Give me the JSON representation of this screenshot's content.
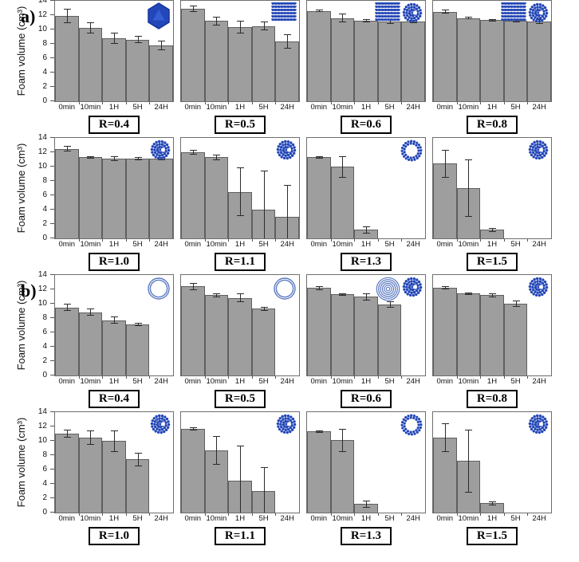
{
  "figure": {
    "panel_a_label": "a)",
    "panel_b_label": "b)",
    "y_axis_label": "Foam volume (cm³)",
    "x_categories": [
      "0min",
      "10min",
      "1H",
      "5H",
      "24H"
    ],
    "y_ticks": [
      0,
      2,
      4,
      6,
      8,
      10,
      12,
      14
    ],
    "y_max": 14,
    "grid": false,
    "legend": "none"
  },
  "colors": {
    "bar_fill": "#9e9e9e",
    "bar_border": "#5f5f5f",
    "error_bar": "#2b2b2b",
    "plot_border": "#6e6e6e",
    "icon_blue": "#2347b8",
    "icon_dark_blue": "#16339a",
    "ring_blue": "#5b79c0",
    "label_box_border": "#000000"
  },
  "chart_data": [
    {
      "panel": "a",
      "row": 0,
      "type": "bar",
      "title": "R=0.4",
      "categories": [
        "0min",
        "10min",
        "1H",
        "5H",
        "24H"
      ],
      "values": [
        11.9,
        10.2,
        8.8,
        8.6,
        7.8
      ],
      "errors": [
        1.0,
        0.8,
        0.8,
        0.5,
        0.7
      ],
      "icons": [
        "cubosome"
      ],
      "ylim": [
        0,
        14
      ]
    },
    {
      "panel": "a",
      "row": 0,
      "type": "bar",
      "title": "R=0.5",
      "categories": [
        "0min",
        "10min",
        "1H",
        "5H",
        "24H"
      ],
      "values": [
        12.9,
        11.2,
        10.3,
        10.5,
        8.3
      ],
      "errors": [
        0.4,
        0.6,
        0.9,
        0.6,
        1.0
      ],
      "icons": [
        "lamellar"
      ],
      "ylim": [
        0,
        14
      ]
    },
    {
      "panel": "a",
      "row": 0,
      "type": "bar",
      "title": "R=0.6",
      "categories": [
        "0min",
        "10min",
        "1H",
        "5H",
        "24H"
      ],
      "values": [
        12.6,
        11.6,
        11.2,
        11.1,
        11.1
      ],
      "errors": [
        0.2,
        0.6,
        0.2,
        0.3,
        0.2
      ],
      "icons": [
        "lamellar",
        "micelle"
      ],
      "ylim": [
        0,
        14
      ]
    },
    {
      "panel": "a",
      "row": 0,
      "type": "bar",
      "title": "R=0.8",
      "categories": [
        "0min",
        "10min",
        "1H",
        "5H",
        "24H"
      ],
      "values": [
        12.5,
        11.6,
        11.3,
        11.2,
        11.1
      ],
      "errors": [
        0.3,
        0.2,
        0.2,
        0.2,
        0.3
      ],
      "icons": [
        "lamellar",
        "micelle"
      ],
      "ylim": [
        0,
        14
      ]
    },
    {
      "panel": "a",
      "row": 1,
      "type": "bar",
      "title": "R=1.0",
      "categories": [
        "0min",
        "10min",
        "1H",
        "5H",
        "24H"
      ],
      "values": [
        12.5,
        11.3,
        11.1,
        11.1,
        11.1
      ],
      "errors": [
        0.4,
        0.2,
        0.3,
        0.2,
        0.2
      ],
      "icons": [
        "micelle"
      ],
      "ylim": [
        0,
        14
      ]
    },
    {
      "panel": "a",
      "row": 1,
      "type": "bar",
      "title": "R=1.1",
      "categories": [
        "0min",
        "10min",
        "1H",
        "5H",
        "24H"
      ],
      "values": [
        12.0,
        11.3,
        6.5,
        4.0,
        3.0
      ],
      "errors": [
        0.3,
        0.4,
        3.4,
        5.5,
        4.5
      ],
      "icons": [
        "micelle"
      ],
      "ylim": [
        0,
        14
      ]
    },
    {
      "panel": "a",
      "row": 1,
      "type": "bar",
      "title": "R=1.3",
      "categories": [
        "0min",
        "10min",
        "1H",
        "5H",
        "24H"
      ],
      "values": [
        11.3,
        10.0,
        1.2,
        0,
        0
      ],
      "errors": [
        0.2,
        1.5,
        0.5,
        0,
        0
      ],
      "icons": [
        "dotted-ring"
      ],
      "ylim": [
        0,
        14
      ]
    },
    {
      "panel": "a",
      "row": 1,
      "type": "bar",
      "title": "R=1.5",
      "categories": [
        "0min",
        "10min",
        "1H",
        "5H",
        "24H"
      ],
      "values": [
        10.4,
        7.0,
        1.2,
        0,
        0
      ],
      "errors": [
        1.9,
        4.0,
        0.3,
        0,
        0
      ],
      "icons": [
        "micelle"
      ],
      "ylim": [
        0,
        14
      ]
    },
    {
      "panel": "b",
      "row": 2,
      "type": "bar",
      "title": "R=0.4",
      "categories": [
        "0min",
        "10min",
        "1H",
        "5H",
        "24H"
      ],
      "values": [
        9.5,
        8.8,
        7.7,
        7.1,
        0
      ],
      "errors": [
        0.5,
        0.5,
        0.5,
        0.2,
        0
      ],
      "icons": [
        "vesicle-ring"
      ],
      "ylim": [
        0,
        14
      ]
    },
    {
      "panel": "b",
      "row": 2,
      "type": "bar",
      "title": "R=0.5",
      "categories": [
        "0min",
        "10min",
        "1H",
        "5H",
        "24H"
      ],
      "values": [
        12.4,
        11.2,
        10.8,
        9.3,
        0
      ],
      "errors": [
        0.5,
        0.3,
        0.6,
        0.3,
        0
      ],
      "icons": [
        "vesicle-ring"
      ],
      "ylim": [
        0,
        14
      ]
    },
    {
      "panel": "b",
      "row": 2,
      "type": "bar",
      "title": "R=0.6",
      "categories": [
        "0min",
        "10min",
        "1H",
        "5H",
        "24H"
      ],
      "values": [
        12.2,
        11.3,
        11.0,
        9.9,
        0
      ],
      "errors": [
        0.3,
        0.2,
        0.5,
        0.4,
        0
      ],
      "icons": [
        "onion",
        "micelle"
      ],
      "ylim": [
        0,
        14
      ]
    },
    {
      "panel": "b",
      "row": 2,
      "type": "bar",
      "title": "R=0.8",
      "categories": [
        "0min",
        "10min",
        "1H",
        "5H",
        "24H"
      ],
      "values": [
        12.2,
        11.4,
        11.2,
        10.0,
        0
      ],
      "errors": [
        0.2,
        0.2,
        0.3,
        0.4,
        0
      ],
      "icons": [
        "micelle"
      ],
      "ylim": [
        0,
        14
      ]
    },
    {
      "panel": "b",
      "row": 3,
      "type": "bar",
      "title": "R=1.0",
      "categories": [
        "0min",
        "10min",
        "1H",
        "5H",
        "24H"
      ],
      "values": [
        11.0,
        10.5,
        10.0,
        7.4,
        0
      ],
      "errors": [
        0.6,
        1.0,
        1.5,
        0.9,
        0
      ],
      "icons": [
        "micelle"
      ],
      "ylim": [
        0,
        14
      ]
    },
    {
      "panel": "b",
      "row": 3,
      "type": "bar",
      "title": "R=1.1",
      "categories": [
        "0min",
        "10min",
        "1H",
        "5H",
        "24H"
      ],
      "values": [
        11.7,
        8.7,
        4.5,
        3.0,
        0
      ],
      "errors": [
        0.2,
        2.0,
        4.8,
        3.3,
        0
      ],
      "icons": [
        "micelle"
      ],
      "ylim": [
        0,
        14
      ]
    },
    {
      "panel": "b",
      "row": 3,
      "type": "bar",
      "title": "R=1.3",
      "categories": [
        "0min",
        "10min",
        "1H",
        "5H",
        "24H"
      ],
      "values": [
        11.3,
        10.1,
        1.2,
        0,
        0
      ],
      "errors": [
        0.2,
        1.6,
        0.5,
        0,
        0
      ],
      "icons": [
        "dotted-ring"
      ],
      "ylim": [
        0,
        14
      ]
    },
    {
      "panel": "b",
      "row": 3,
      "type": "bar",
      "title": "R=1.5",
      "categories": [
        "0min",
        "10min",
        "1H",
        "5H",
        "24H"
      ],
      "values": [
        10.5,
        7.2,
        1.3,
        0,
        0
      ],
      "errors": [
        2.0,
        4.4,
        0.3,
        0,
        0
      ],
      "icons": [
        "micelle"
      ],
      "ylim": [
        0,
        14
      ]
    }
  ]
}
